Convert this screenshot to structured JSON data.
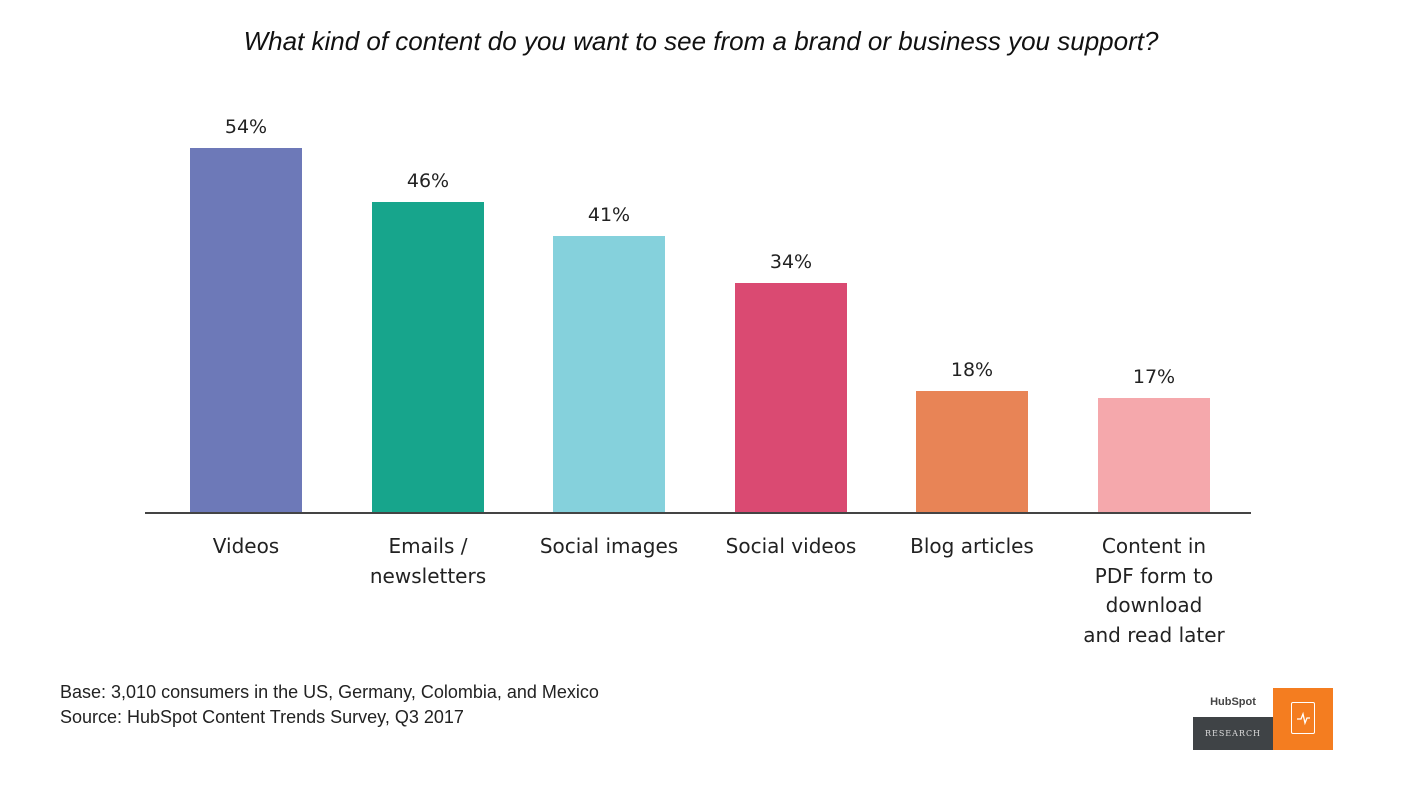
{
  "chart_data": {
    "type": "bar",
    "title": "What kind of content do you want to see from a brand or business you support?",
    "categories": [
      "Videos",
      "Emails / newsletters",
      "Social images",
      "Social videos",
      "Blog articles",
      "Content in PDF form to download and read later"
    ],
    "category_labels_display": [
      "Videos",
      "Emails /\nnewsletters",
      "Social images",
      "Social videos",
      "Blog articles",
      "Content in\nPDF form to\ndownload\nand read later"
    ],
    "values": [
      54,
      46,
      41,
      34,
      18,
      17
    ],
    "value_labels": [
      "54%",
      "46%",
      "41%",
      "34%",
      "18%",
      "17%"
    ],
    "colors": [
      "#6d79b8",
      "#17a58c",
      "#85d1dc",
      "#da4a72",
      "#e88456",
      "#f5a8ac"
    ],
    "xlabel": "",
    "ylabel": "",
    "unit": "%",
    "ylim": [
      0,
      54
    ],
    "grid": false,
    "legend": "none"
  },
  "footnote": {
    "base": "Base: 3,010 consumers in the US, Germany, Colombia, and Mexico",
    "source": "Source: HubSpot Content Trends Survey, Q3 2017"
  },
  "logo": {
    "brand": "HubSpot",
    "label": "RESEARCH",
    "accent": "#f47d20"
  }
}
